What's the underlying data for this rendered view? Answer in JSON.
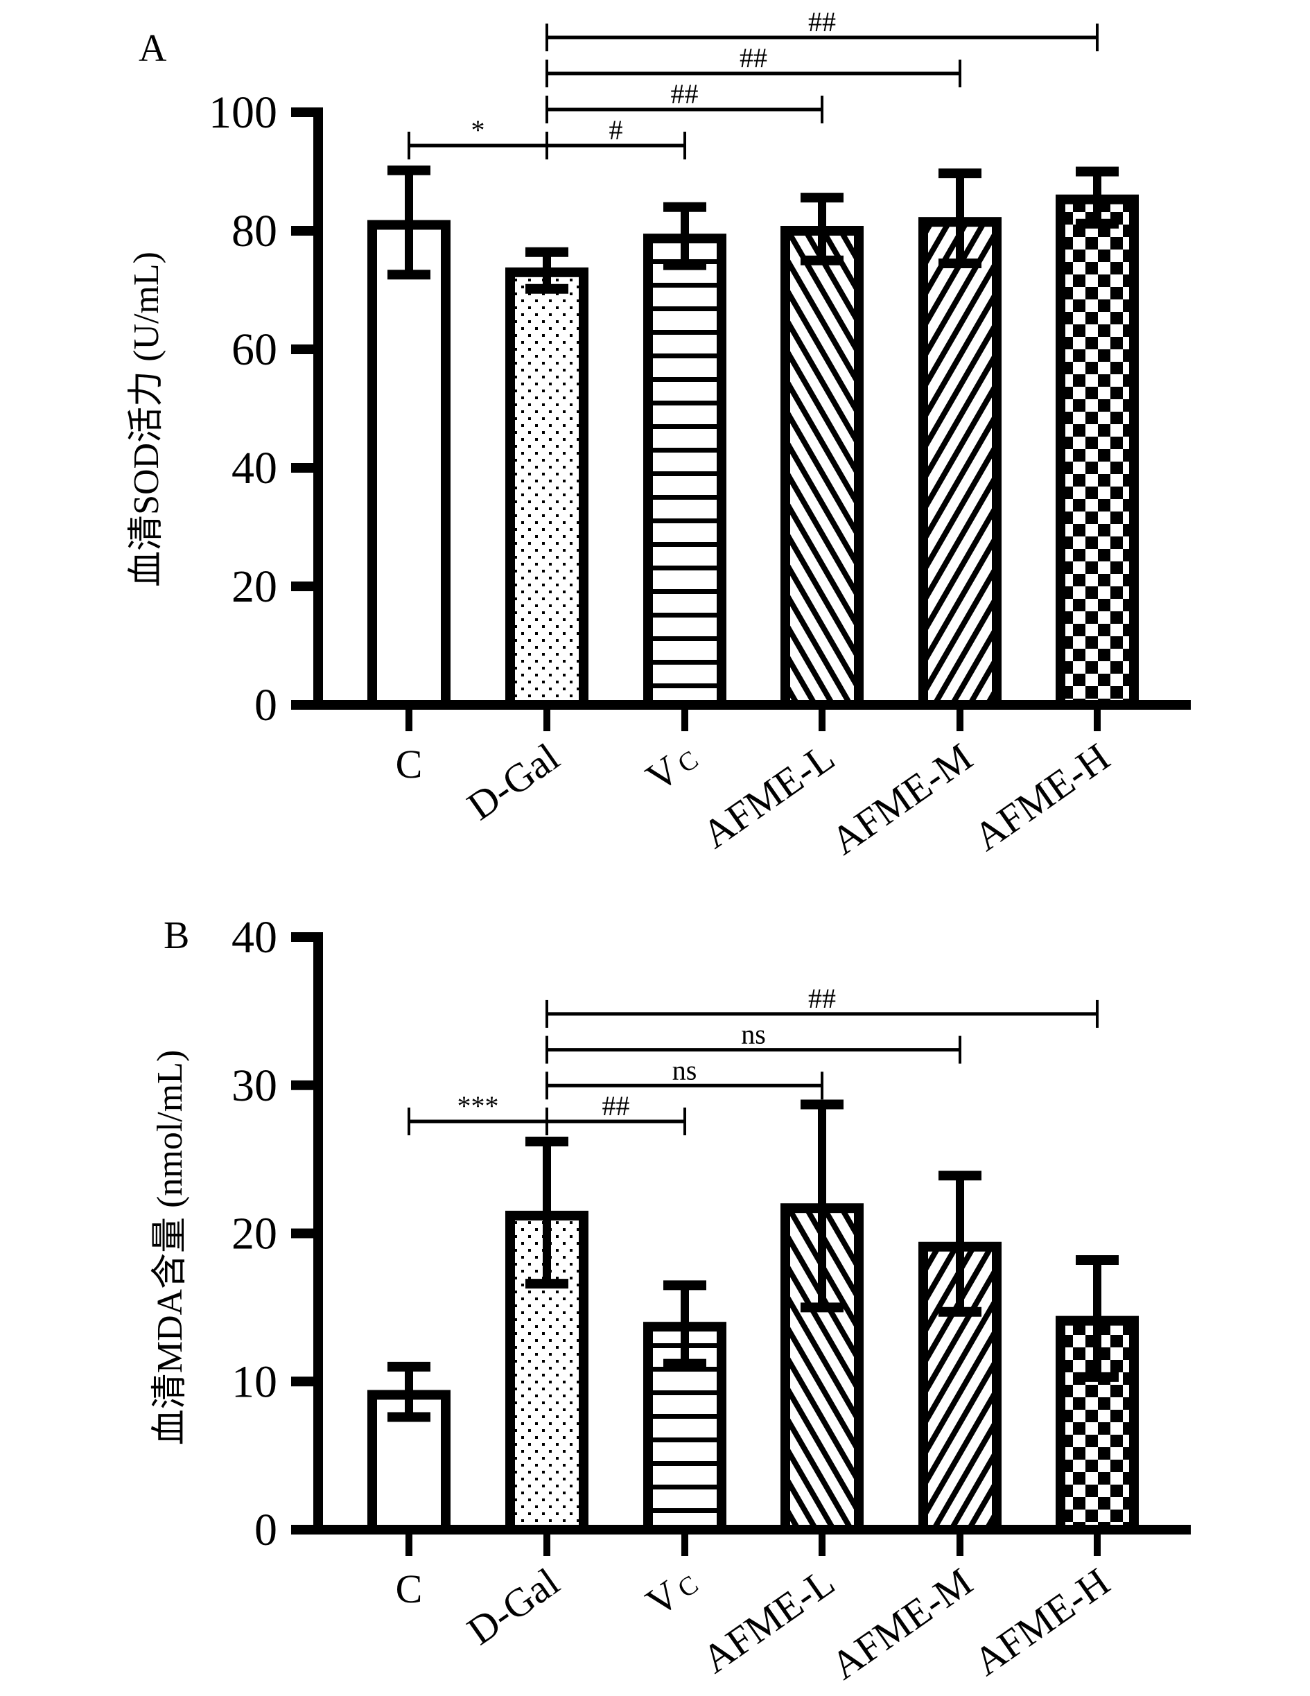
{
  "chart_data": [
    {
      "type": "bar",
      "panel": "A",
      "title": "",
      "xlabel": "",
      "ylabel": "血清SOD活力 (U/mL)",
      "ylim": [
        0,
        100
      ],
      "yticks": [
        "0",
        "20",
        "40",
        "60",
        "80",
        "100"
      ],
      "ytick_values": [
        0,
        20,
        40,
        60,
        80,
        100
      ],
      "categories": [
        "C",
        "D-Gal",
        "VC",
        "AFME-L",
        "AFME-M",
        "AFME-H"
      ],
      "category_labels": [
        {
          "main": "C",
          "sub": ""
        },
        {
          "main": "D-Gal",
          "sub": ""
        },
        {
          "main": "V",
          "sub": "C"
        },
        {
          "main": "AFME-L",
          "sub": ""
        },
        {
          "main": "AFME-M",
          "sub": ""
        },
        {
          "main": "AFME-H",
          "sub": ""
        }
      ],
      "patterns": [
        "none",
        "dots",
        "hlines",
        "diag-back",
        "diag-fwd",
        "checker"
      ],
      "values": [
        81,
        73,
        78.7,
        80,
        81.5,
        85.3
      ],
      "error_high": [
        90.2,
        76.4,
        84,
        85.6,
        89.7,
        90
      ],
      "error_low": [
        72.6,
        70.2,
        74.2,
        75,
        74.5,
        81.2
      ],
      "grid": false,
      "significance": [
        {
          "from": 0,
          "to": 1,
          "label": "*",
          "level": 0
        },
        {
          "from": 1,
          "to": 2,
          "label": "#",
          "level": 0
        },
        {
          "from": 1,
          "to": 3,
          "label": "##",
          "level": 1
        },
        {
          "from": 1,
          "to": 4,
          "label": "##",
          "level": 2
        },
        {
          "from": 1,
          "to": 5,
          "label": "##",
          "level": 3
        }
      ]
    },
    {
      "type": "bar",
      "panel": "B",
      "title": "",
      "xlabel": "",
      "ylabel": "血清MDA含量 (nmol/mL)",
      "ylim": [
        0,
        40
      ],
      "yticks": [
        "0",
        "10",
        "20",
        "30",
        "40"
      ],
      "ytick_values": [
        0,
        10,
        20,
        30,
        40
      ],
      "categories": [
        "C",
        "D-Gal",
        "VC",
        "AFME-L",
        "AFME-M",
        "AFME-H"
      ],
      "category_labels": [
        {
          "main": "C",
          "sub": ""
        },
        {
          "main": "D-Gal",
          "sub": ""
        },
        {
          "main": "V",
          "sub": "C"
        },
        {
          "main": "AFME-L",
          "sub": ""
        },
        {
          "main": "AFME-M",
          "sub": ""
        },
        {
          "main": "AFME-H",
          "sub": ""
        }
      ],
      "patterns": [
        "none",
        "dots",
        "hlines",
        "diag-back",
        "diag-fwd",
        "checker"
      ],
      "values": [
        9.1,
        21.2,
        13.7,
        21.7,
        19.1,
        14.1
      ],
      "error_high": [
        11,
        26.2,
        16.5,
        28.7,
        23.9,
        18.2
      ],
      "error_low": [
        7.6,
        16.6,
        11.2,
        15,
        14.7,
        10.3
      ],
      "grid": false,
      "significance": [
        {
          "from": 0,
          "to": 1,
          "label": "***",
          "level": 0
        },
        {
          "from": 1,
          "to": 2,
          "label": "##",
          "level": 0
        },
        {
          "from": 1,
          "to": 3,
          "label": "ns",
          "level": 1
        },
        {
          "from": 1,
          "to": 4,
          "label": "ns",
          "level": 2
        },
        {
          "from": 1,
          "to": 5,
          "label": "##",
          "level": 3
        }
      ]
    }
  ]
}
